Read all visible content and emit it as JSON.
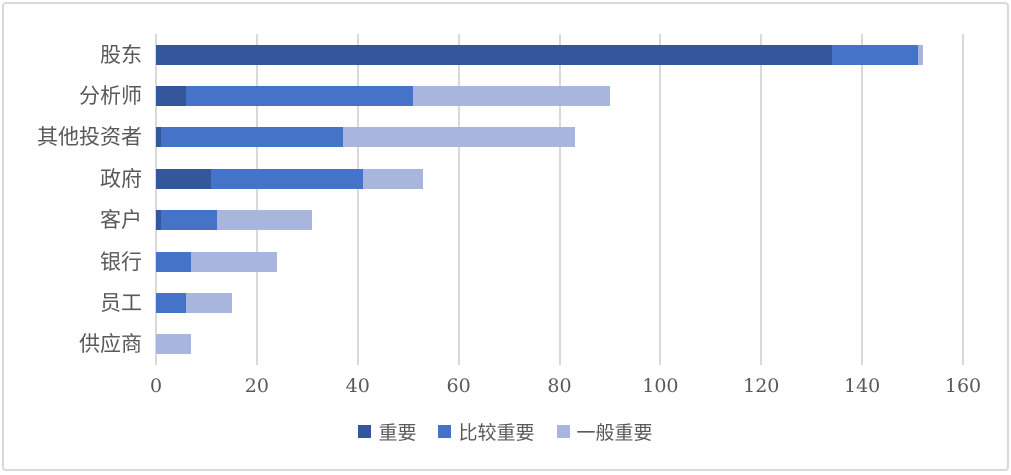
{
  "chart_data": {
    "type": "bar",
    "orientation": "horizontal",
    "stacked": true,
    "title": "",
    "xlabel": "",
    "ylabel": "",
    "categories": [
      "股东",
      "分析师",
      "其他投资者",
      "政府",
      "客户",
      "银行",
      "员工",
      "供应商"
    ],
    "series": [
      {
        "name": "重要",
        "color": "#34569B",
        "values": [
          134,
          6,
          1,
          11,
          1,
          0,
          0,
          0
        ]
      },
      {
        "name": "比较重要",
        "color": "#4573C8",
        "values": [
          17,
          45,
          36,
          30,
          11,
          7,
          6,
          0
        ]
      },
      {
        "name": "一般重要",
        "color": "#A8B5DC",
        "values": [
          1,
          39,
          46,
          12,
          19,
          17,
          9,
          7
        ]
      }
    ],
    "totals": [
      152,
      90,
      83,
      53,
      31,
      24,
      15,
      7
    ],
    "xlim": [
      0,
      160
    ],
    "xticks": [
      "0",
      "20",
      "40",
      "60",
      "80",
      "100",
      "120",
      "140",
      "160"
    ],
    "grid": true,
    "legend_position": "bottom"
  },
  "colors": {
    "grid": "#D9D9D9",
    "frame_border": "#D9D9D9",
    "text": "#595959",
    "background": "#FFFFFF"
  }
}
